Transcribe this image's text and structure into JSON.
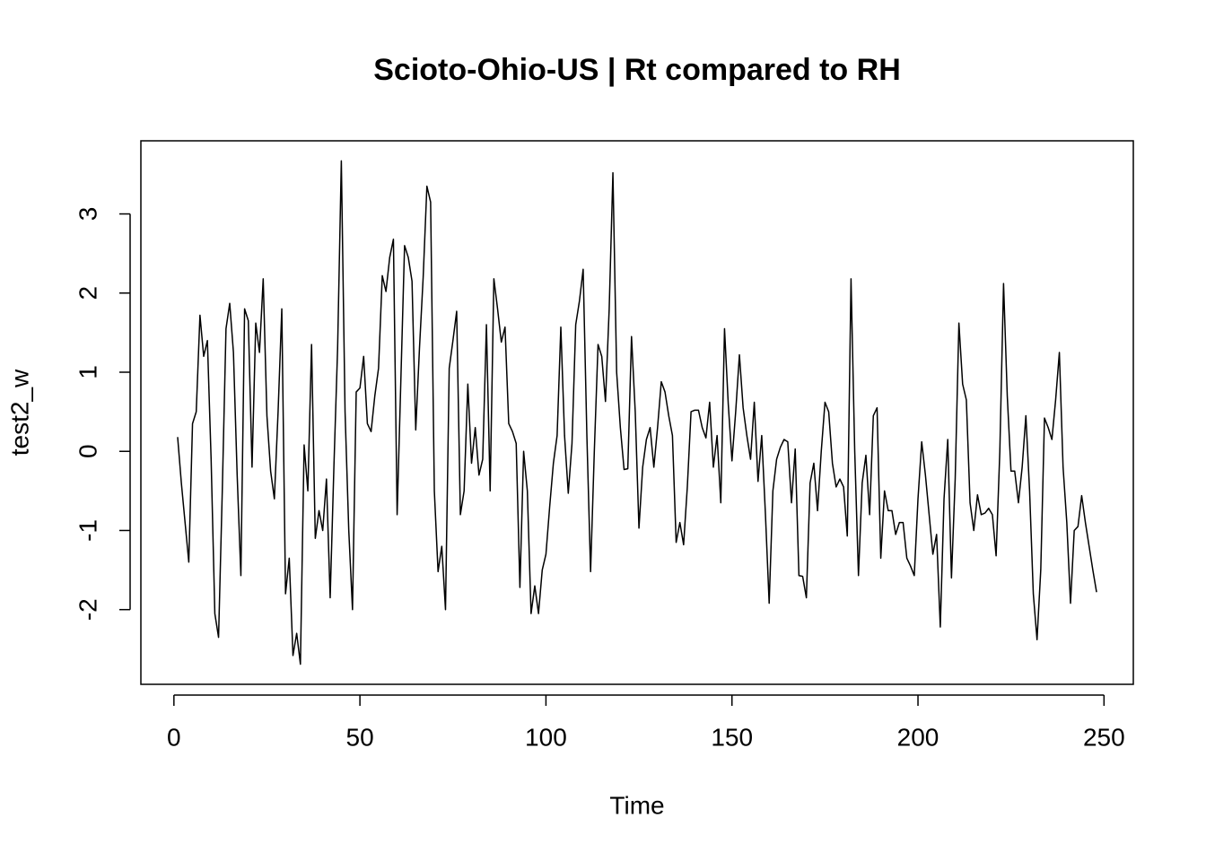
{
  "chart_data": {
    "type": "line",
    "title": "Scioto-Ohio-US | Rt compared to RH",
    "xlabel": "Time",
    "ylabel": "test2_w",
    "x": [
      1,
      2,
      3,
      4,
      5,
      6,
      7,
      8,
      9,
      10,
      11,
      12,
      13,
      14,
      15,
      16,
      17,
      18,
      19,
      20,
      21,
      22,
      23,
      24,
      25,
      26,
      27,
      28,
      29,
      30,
      31,
      32,
      33,
      34,
      35,
      36,
      37,
      38,
      39,
      40,
      41,
      42,
      43,
      44,
      45,
      46,
      47,
      48,
      49,
      50,
      51,
      52,
      53,
      54,
      55,
      56,
      57,
      58,
      59,
      60,
      61,
      62,
      63,
      64,
      65,
      66,
      67,
      68,
      69,
      70,
      71,
      72,
      73,
      74,
      75,
      76,
      77,
      78,
      79,
      80,
      81,
      82,
      83,
      84,
      85,
      86,
      87,
      88,
      89,
      90,
      91,
      92,
      93,
      94,
      95,
      96,
      97,
      98,
      99,
      100,
      101,
      102,
      103,
      104,
      105,
      106,
      107,
      108,
      109,
      110,
      111,
      112,
      113,
      114,
      115,
      116,
      117,
      118,
      119,
      120,
      121,
      122,
      123,
      124,
      125,
      126,
      127,
      128,
      129,
      130,
      131,
      132,
      133,
      134,
      135,
      136,
      137,
      138,
      139,
      140,
      141,
      142,
      143,
      144,
      145,
      146,
      147,
      148,
      149,
      150,
      151,
      152,
      153,
      154,
      155,
      156,
      157,
      158,
      159,
      160,
      161,
      162,
      163,
      164,
      165,
      166,
      167,
      168,
      169,
      170,
      171,
      172,
      173,
      174,
      175,
      176,
      177,
      178,
      179,
      180,
      181,
      182,
      183,
      184,
      185,
      186,
      187,
      188,
      189,
      190,
      191,
      192,
      193,
      194,
      195,
      196,
      197,
      198,
      199,
      200,
      201,
      202,
      203,
      204,
      205,
      206,
      207,
      208,
      209,
      210,
      211,
      212,
      213,
      214,
      215,
      216,
      217,
      218,
      219,
      220,
      221,
      222,
      223,
      224,
      225,
      226,
      227,
      228,
      229,
      230,
      231,
      232,
      233,
      234,
      235,
      236,
      237,
      238,
      239,
      240,
      241,
      242,
      243,
      244,
      245,
      246,
      247,
      248
    ],
    "values": [
      0.18,
      -0.4,
      -0.9,
      -1.4,
      0.35,
      0.5,
      1.72,
      1.2,
      1.4,
      -0.1,
      -2.05,
      -2.35,
      -0.5,
      1.55,
      1.87,
      1.25,
      -0.3,
      -1.57,
      1.8,
      1.65,
      -0.2,
      1.62,
      1.25,
      2.18,
      0.45,
      -0.25,
      -0.6,
      0.5,
      1.8,
      -1.8,
      -1.35,
      -2.58,
      -2.3,
      -2.69,
      0.08,
      -0.5,
      1.35,
      -1.1,
      -0.75,
      -1.0,
      -0.35,
      -1.85,
      -0.2,
      1.3,
      3.67,
      0.5,
      -1.0,
      -2.0,
      0.75,
      0.8,
      1.2,
      0.35,
      0.25,
      0.7,
      1.05,
      2.22,
      2.02,
      2.45,
      2.68,
      -0.8,
      0.9,
      2.6,
      2.45,
      2.15,
      0.27,
      1.3,
      2.2,
      3.35,
      3.15,
      -0.5,
      -1.52,
      -1.2,
      -2.0,
      1.05,
      1.4,
      1.77,
      -0.8,
      -0.5,
      0.85,
      -0.15,
      0.3,
      -0.3,
      -0.1,
      1.6,
      -0.5,
      2.18,
      1.8,
      1.38,
      1.57,
      0.35,
      0.25,
      0.1,
      -1.72,
      0.0,
      -0.5,
      -2.05,
      -1.7,
      -2.05,
      -1.5,
      -1.3,
      -0.7,
      -0.15,
      0.2,
      1.57,
      0.2,
      -0.53,
      0.1,
      1.6,
      1.9,
      2.3,
      0.2,
      -1.52,
      0.0,
      1.35,
      1.2,
      0.63,
      1.8,
      3.52,
      1.0,
      0.3,
      -0.23,
      -0.22,
      1.45,
      0.5,
      -0.97,
      -0.2,
      0.15,
      0.3,
      -0.2,
      0.3,
      0.88,
      0.75,
      0.45,
      0.2,
      -1.15,
      -0.9,
      -1.18,
      -0.45,
      0.5,
      0.52,
      0.52,
      0.3,
      0.17,
      0.62,
      -0.2,
      0.2,
      -0.65,
      1.55,
      0.6,
      -0.12,
      0.5,
      1.22,
      0.55,
      0.2,
      -0.1,
      0.62,
      -0.38,
      0.2,
      -0.8,
      -1.92,
      -0.5,
      -0.1,
      0.05,
      0.15,
      0.12,
      -0.65,
      0.03,
      -1.57,
      -1.58,
      -1.85,
      -0.4,
      -0.15,
      -0.75,
      0.0,
      0.62,
      0.5,
      -0.15,
      -0.45,
      -0.35,
      -0.45,
      -1.07,
      2.18,
      0.0,
      -1.57,
      -0.4,
      -0.05,
      -0.8,
      0.45,
      0.55,
      -1.35,
      -0.5,
      -0.75,
      -0.75,
      -1.05,
      -0.9,
      -0.9,
      -1.35,
      -1.45,
      -1.57,
      -0.6,
      0.12,
      -0.3,
      -0.8,
      -1.3,
      -1.05,
      -2.22,
      -0.6,
      0.15,
      -1.6,
      -0.35,
      1.62,
      0.85,
      0.65,
      -0.65,
      -1.0,
      -0.55,
      -0.8,
      -0.78,
      -0.72,
      -0.8,
      -1.32,
      0.0,
      2.12,
      0.7,
      -0.25,
      -0.25,
      -0.65,
      -0.2,
      0.45,
      -0.5,
      -1.8,
      -2.38,
      -1.5,
      0.42,
      0.3,
      0.15,
      0.65,
      1.25,
      -0.2,
      -0.9,
      -1.92,
      -1.0,
      -0.95,
      -0.56,
      -0.9,
      -1.2,
      -1.5,
      -1.78
    ],
    "color": "#000000",
    "xlim": [
      -8.88,
      257.88
    ],
    "xticks": [
      0,
      50,
      100,
      150,
      200,
      250
    ],
    "ylim": [
      -2.944,
      3.924
    ],
    "yticks": [
      -2,
      -1,
      0,
      1,
      2,
      3
    ],
    "grid": false
  }
}
